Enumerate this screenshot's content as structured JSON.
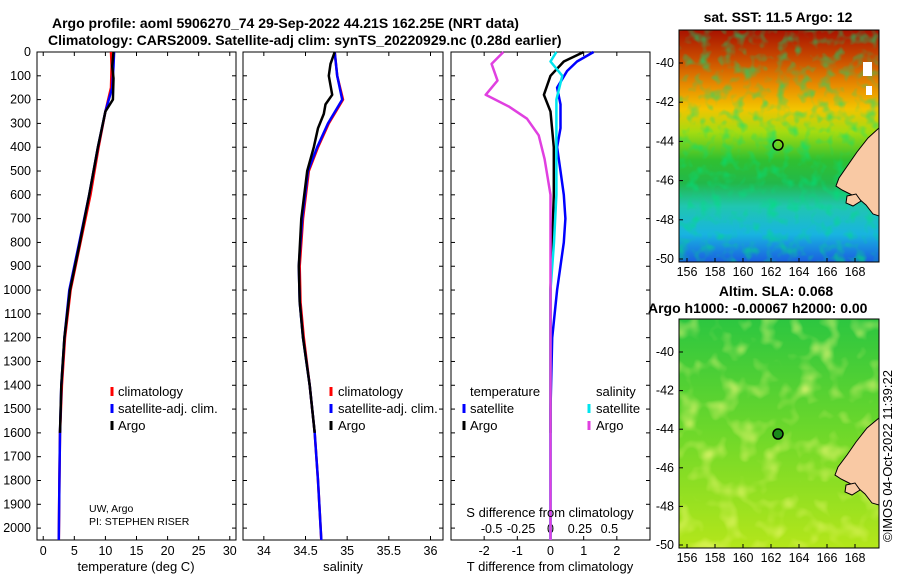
{
  "header": {
    "line1": "Argo profile: aoml 5906270_74 29-Sep-2022 44.21S 162.25E (NRT data)",
    "line2": "Climatology: CARS2009. Satellite-adj clim: synTS_20220929.nc (0.28d earlier)"
  },
  "depth_ticks": [
    "0",
    "100",
    "200",
    "300",
    "400",
    "500",
    "600",
    "700",
    "800",
    "900",
    "1000",
    "1100",
    "1200",
    "1300",
    "1400",
    "1500",
    "1600",
    "1700",
    "1800",
    "1900",
    "2000"
  ],
  "chart_data": [
    {
      "type": "line",
      "name": "temperature",
      "xlabel": "temperature (deg C)",
      "ylabel": "depth",
      "xlim": [
        -1,
        31
      ],
      "ylim": [
        2050,
        0
      ],
      "xticks": [
        "0",
        "5",
        "10",
        "15",
        "20",
        "25",
        "30"
      ],
      "xtick_values": [
        0,
        5,
        10,
        15,
        20,
        25,
        30
      ],
      "legend": [
        "climatology",
        "satellite-adj. clim.",
        "Argo"
      ],
      "series": [
        {
          "name": "climatology",
          "color": "#ff0000",
          "depth": [
            0,
            60,
            150,
            250,
            400,
            600,
            800,
            1000,
            1200,
            1400,
            1600,
            1800,
            2050
          ],
          "values": [
            10.9,
            11.0,
            10.9,
            10.0,
            8.9,
            7.6,
            6.0,
            4.4,
            3.5,
            3.0,
            2.7,
            2.6,
            2.5
          ]
        },
        {
          "name": "satellite-adj. clim.",
          "color": "#0000ff",
          "depth": [
            0,
            60,
            150,
            250,
            400,
            600,
            800,
            1000,
            1200,
            1400,
            1600,
            1800,
            2050
          ],
          "values": [
            11.4,
            11.3,
            11.1,
            10.0,
            8.8,
            7.4,
            5.8,
            4.2,
            3.4,
            2.9,
            2.7,
            2.6,
            2.5
          ]
        },
        {
          "name": "Argo",
          "color": "#000000",
          "depth": [
            0,
            60,
            110,
            200,
            250,
            400,
            600,
            800,
            1000,
            1200,
            1400,
            1600
          ],
          "values": [
            11.3,
            11.1,
            11.3,
            11.2,
            10.0,
            8.8,
            7.4,
            5.9,
            4.3,
            3.4,
            2.9,
            2.7
          ]
        }
      ]
    },
    {
      "type": "line",
      "name": "salinity",
      "xlabel": "salinity",
      "xlim": [
        33.75,
        36.15
      ],
      "ylim": [
        2050,
        0
      ],
      "xticks": [
        "34",
        "34.5",
        "35",
        "35.5",
        "36"
      ],
      "xtick_values": [
        34,
        34.5,
        35,
        35.5,
        36
      ],
      "legend": [
        "climatology",
        "satellite-adj. clim.",
        "Argo"
      ],
      "series": [
        {
          "name": "climatology",
          "color": "#ff0000",
          "depth": [
            0,
            100,
            200,
            300,
            400,
            500,
            700,
            900,
            1050,
            1200,
            1400,
            1600,
            1800,
            2050
          ],
          "values": [
            34.85,
            34.88,
            34.95,
            34.78,
            34.65,
            34.54,
            34.47,
            34.43,
            34.44,
            34.48,
            34.55,
            34.61,
            34.65,
            34.69
          ]
        },
        {
          "name": "satellite-adj. clim.",
          "color": "#0000ff",
          "depth": [
            0,
            100,
            200,
            300,
            400,
            500,
            700,
            900,
            1050,
            1200,
            1400,
            1600,
            1800,
            2050
          ],
          "values": [
            34.85,
            34.88,
            34.94,
            34.77,
            34.64,
            34.53,
            34.46,
            34.42,
            34.43,
            34.47,
            34.55,
            34.61,
            34.65,
            34.69
          ]
        },
        {
          "name": "Argo",
          "color": "#000000",
          "depth": [
            0,
            50,
            100,
            180,
            220,
            260,
            320,
            400,
            500,
            700,
            900,
            1050,
            1200,
            1400,
            1600
          ],
          "values": [
            34.85,
            34.8,
            34.78,
            34.82,
            34.74,
            34.72,
            34.65,
            34.6,
            34.52,
            34.45,
            34.42,
            34.43,
            34.47,
            34.55,
            34.61
          ]
        }
      ]
    },
    {
      "type": "line",
      "name": "difference",
      "xlabel": "T difference from climatology",
      "xlabel2": "S difference from climatology",
      "xlim": [
        -3,
        3
      ],
      "ylim": [
        2050,
        0
      ],
      "xticks": [
        "-2",
        "-1",
        "0",
        "1",
        "2"
      ],
      "xtick_values": [
        -2,
        -1,
        0,
        1,
        2
      ],
      "sticks": [
        "-0.5",
        "-0.25",
        "0",
        "0.25",
        "0.5"
      ],
      "stick_values": [
        -0.5,
        -0.25,
        0,
        0.25,
        0.5
      ],
      "legend_header_left": "temperature",
      "legend_header_right": "salinity",
      "legend_left": [
        "satellite",
        "Argo"
      ],
      "legend_right": [
        "satellite",
        "Argo"
      ],
      "series": [
        {
          "name": "T satellite",
          "color": "#0000ff",
          "depth": [
            0,
            40,
            80,
            150,
            220,
            320,
            400,
            500,
            600,
            700,
            800,
            1000,
            1200,
            1500,
            1800,
            2050
          ],
          "values": [
            1.3,
            0.8,
            0.5,
            0.2,
            0.3,
            0.3,
            0.2,
            0.3,
            0.4,
            0.45,
            0.4,
            0.2,
            0.05,
            0.0,
            0.0,
            0.0
          ]
        },
        {
          "name": "T Argo",
          "color": "#000000",
          "depth": [
            0,
            40,
            100,
            180,
            250,
            400,
            600,
            800,
            1000,
            1200,
            1500,
            1600
          ],
          "values": [
            1.0,
            0.4,
            0.0,
            -0.2,
            0.0,
            0.1,
            0.1,
            0.05,
            0.0,
            0.0,
            0.0,
            0.0
          ]
        },
        {
          "name": "S satellite",
          "color": "#00e5ee",
          "depth": [
            0,
            40,
            100,
            200,
            300,
            400,
            600,
            800,
            1000,
            1200,
            1500,
            1800,
            2050
          ],
          "values": [
            0.05,
            0.0,
            0.1,
            0.05,
            0.05,
            0.05,
            0.05,
            0.03,
            0.0,
            0.0,
            0.0,
            0.0,
            0.0
          ]
        },
        {
          "name": "S Argo",
          "color": "#e040e0",
          "depth": [
            0,
            50,
            120,
            180,
            230,
            280,
            350,
            450,
            600,
            800,
            1000,
            1200,
            1500,
            1800,
            2050
          ],
          "values": [
            -0.4,
            -0.5,
            -0.45,
            -0.55,
            -0.35,
            -0.2,
            -0.1,
            -0.05,
            0.0,
            0.0,
            0.0,
            0.0,
            0.0,
            0.0,
            0.0
          ]
        }
      ]
    }
  ],
  "map_sst": {
    "title": "sat. SST: 11.5 Argo: 12",
    "lat_ticks": [
      "-40",
      "-42",
      "-44",
      "-46",
      "-48",
      "-50"
    ],
    "lon_ticks": [
      "156",
      "158",
      "160",
      "162",
      "164",
      "166",
      "168"
    ]
  },
  "map_sla": {
    "title1": "Altim. SLA: 0.068",
    "title2": "Argo h1000: -0.00067 h2000: 0.00",
    "lat_ticks": [
      "-40",
      "-42",
      "-44",
      "-46",
      "-48",
      "-50"
    ],
    "lon_ticks": [
      "156",
      "158",
      "160",
      "162",
      "164",
      "166",
      "168"
    ]
  },
  "annotation": {
    "line1": "UW, Argo",
    "line2": "PI: STEPHEN RISER"
  },
  "stamp": "©IMOS 04-Oct-2022 11:39:22"
}
